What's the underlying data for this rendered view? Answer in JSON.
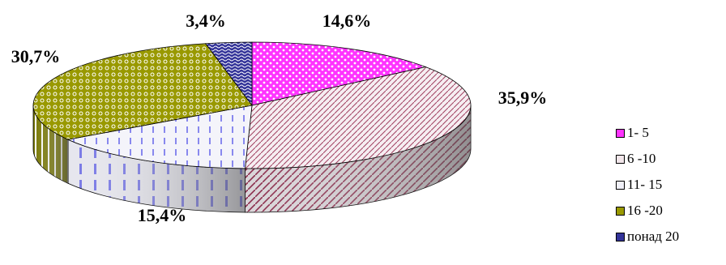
{
  "chart_data": {
    "type": "pie",
    "title": "",
    "categories": [
      "1- 5",
      "6 -10",
      "11- 15",
      "16 -20",
      "понад 20"
    ],
    "values": [
      14.6,
      35.9,
      15.4,
      30.7,
      3.4
    ],
    "data_labels": [
      "14,6%",
      "35,9%",
      "15,4%",
      "30,7%",
      "3,4%"
    ],
    "legend_position": "right",
    "style": "3d",
    "colors": [
      "#ff33ff",
      "#f2e6ea",
      "#f0f0f8",
      "#999900",
      "#333399"
    ]
  }
}
